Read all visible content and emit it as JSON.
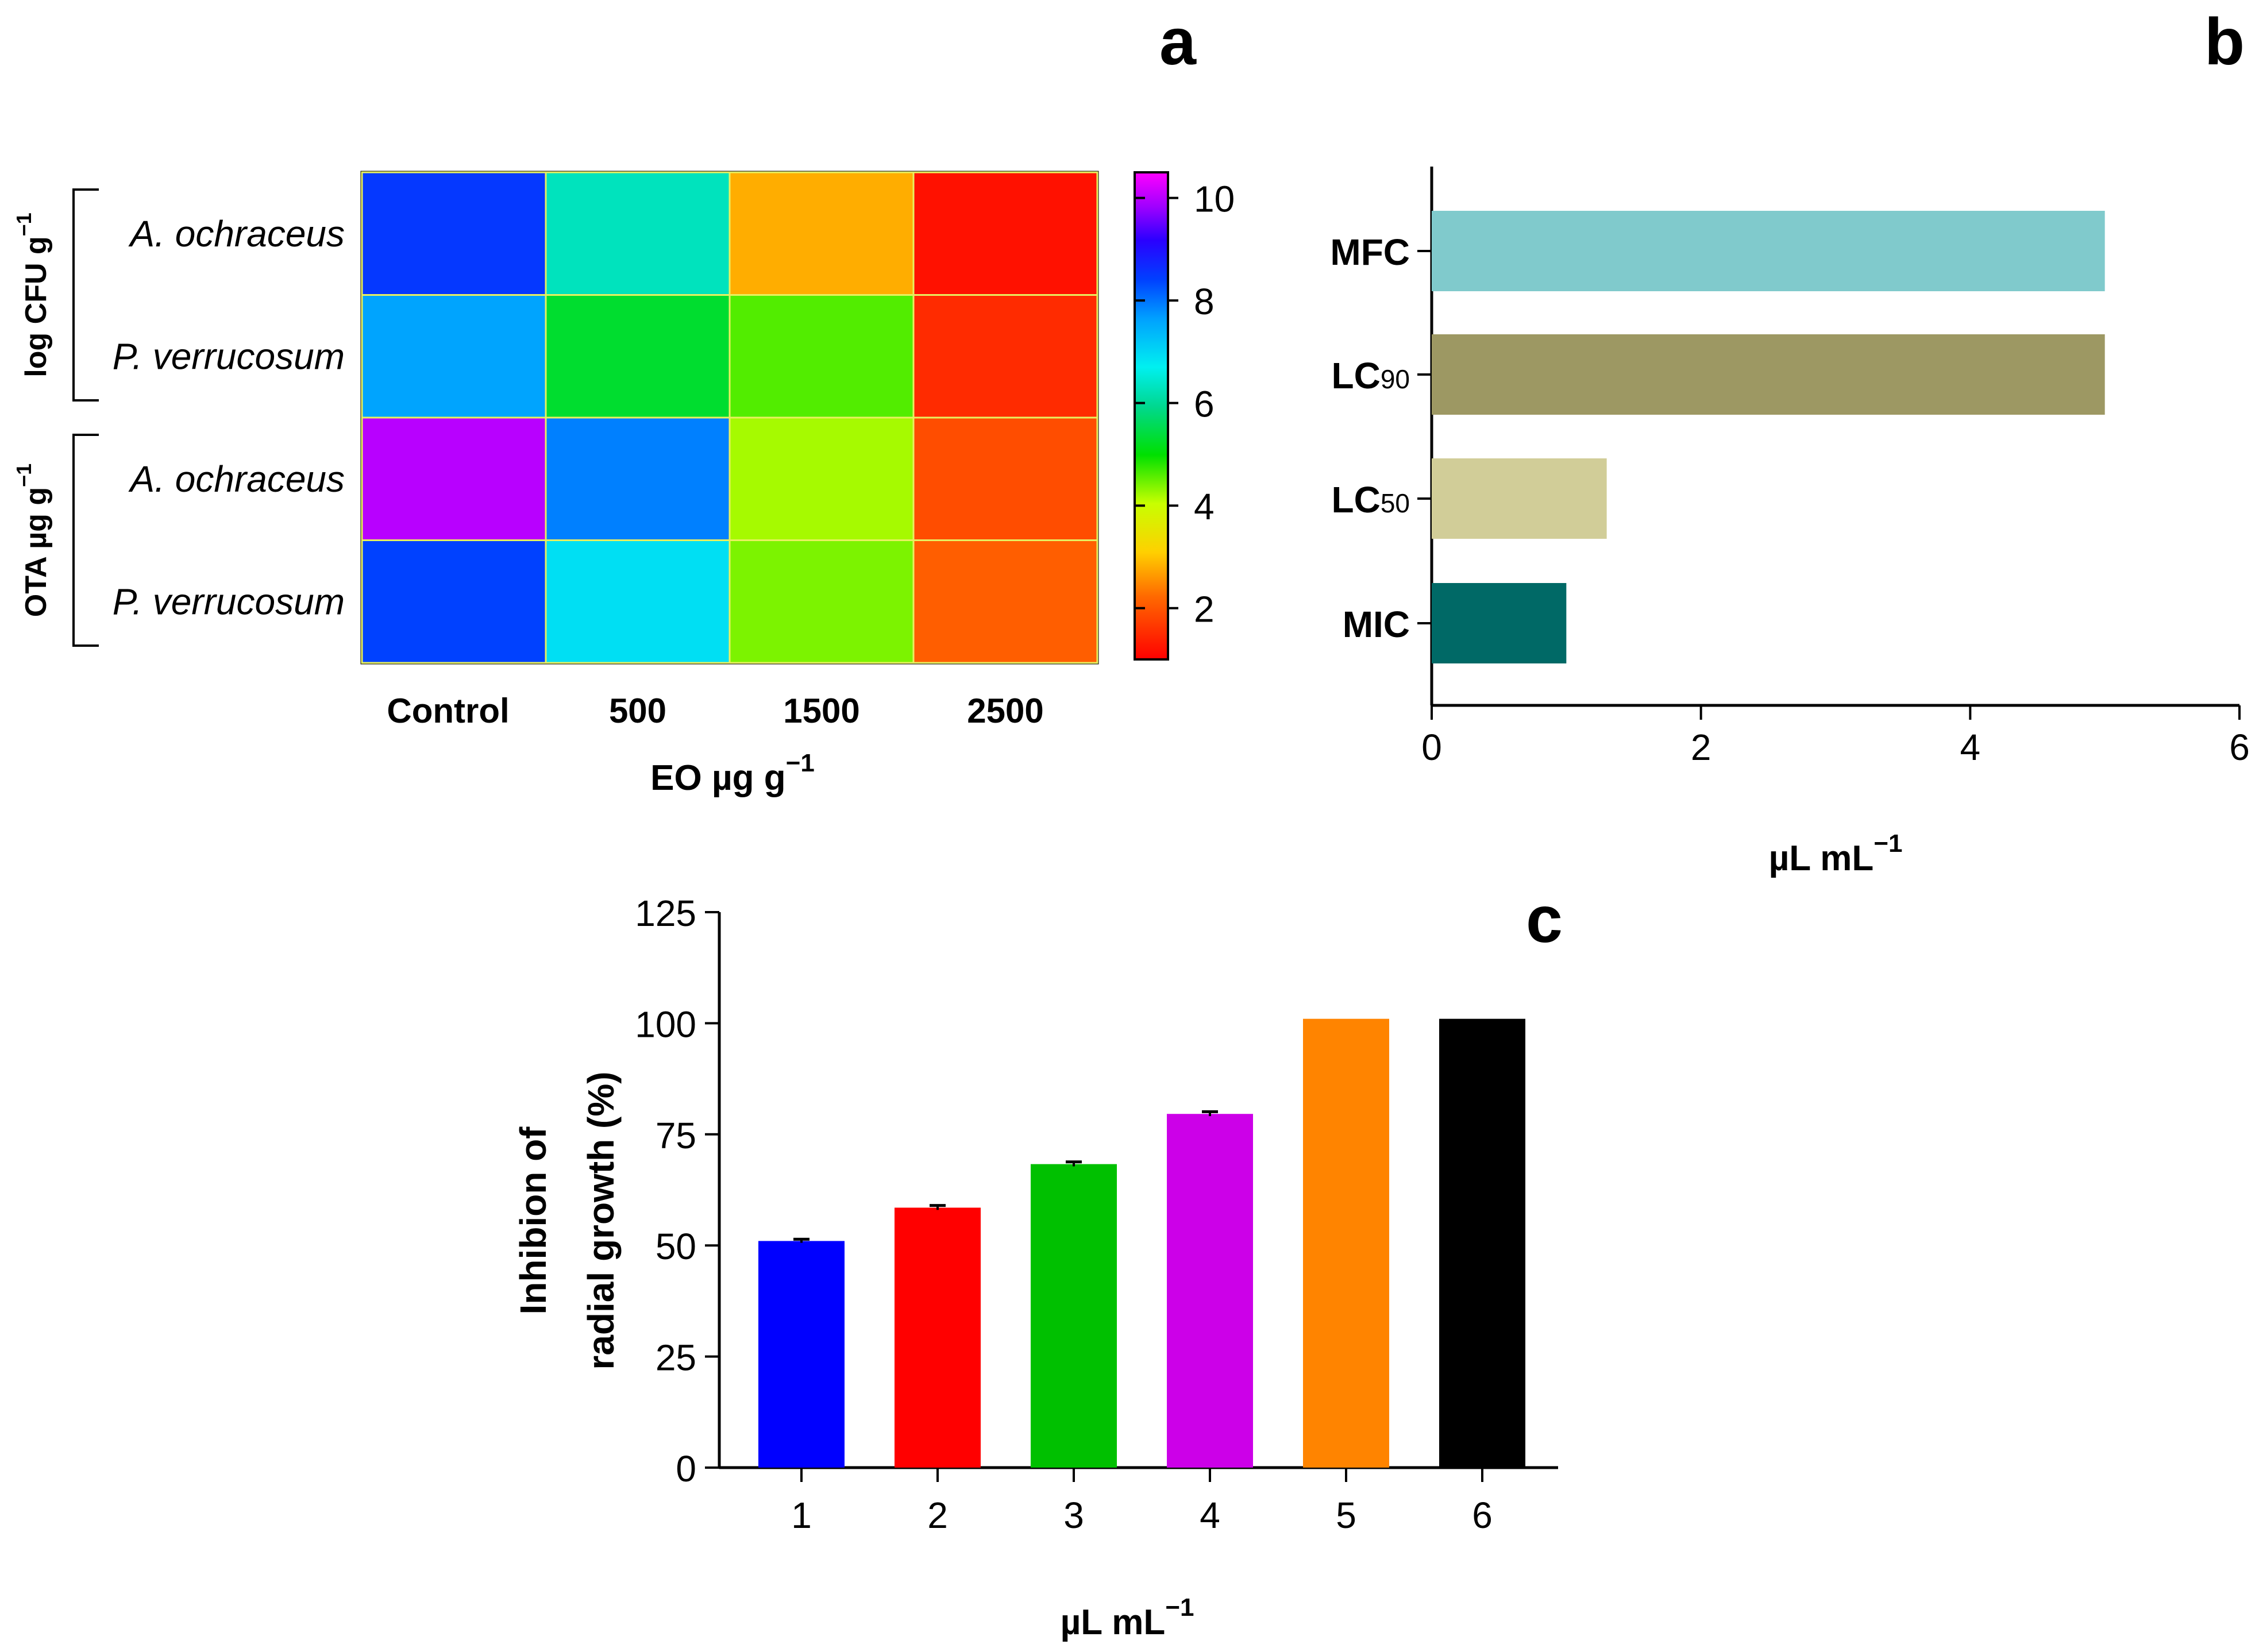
{
  "panel_labels": {
    "a": "a",
    "b": "b",
    "c": "c"
  },
  "chart_data": [
    {
      "id": "a",
      "type": "heatmap",
      "title": "",
      "xlabel": "EO µg g",
      "xlabel_sup": "−1",
      "columns": [
        "Control",
        "500",
        "1500",
        "2500"
      ],
      "rows": [
        "A. ochraceus",
        "P. verrucosum",
        "A. ochraceus",
        "P. verrucosum"
      ],
      "row_groups": [
        {
          "label": "log CFU g",
          "sup": "−1",
          "rows": [
            0,
            1
          ]
        },
        {
          "label": "OTA µg g",
          "sup": "−1",
          "rows": [
            2,
            3
          ]
        }
      ],
      "values": [
        [
          8.5,
          6.3,
          2.8,
          1.2
        ],
        [
          7.6,
          5.3,
          4.6,
          1.5
        ],
        [
          10.0,
          7.9,
          4.2,
          1.9
        ],
        [
          8.4,
          6.9,
          4.4,
          2.1
        ]
      ],
      "colorbar": {
        "min": 1,
        "max": 10.5,
        "ticks": [
          2,
          4,
          6,
          8,
          10
        ],
        "colormap": "jet (red low → magenta high)"
      }
    },
    {
      "id": "b",
      "type": "bar",
      "orientation": "horizontal",
      "title": "",
      "categories": [
        "MFC",
        "LC90",
        "LC50",
        "MIC"
      ],
      "category_parts": [
        {
          "main": "MFC",
          "sub": ""
        },
        {
          "main": "LC",
          "sub": "90"
        },
        {
          "main": "LC",
          "sub": "50"
        },
        {
          "main": "MIC",
          "sub": ""
        }
      ],
      "values": [
        5.0,
        5.0,
        1.3,
        1.0
      ],
      "colors": [
        "#80cacc",
        "#9d9863",
        "#d1cd98",
        "#006966"
      ],
      "xlabel": "µL mL",
      "xlabel_sup": "−1",
      "xlim": [
        0,
        6
      ],
      "xticks": [
        0,
        2,
        4,
        6
      ]
    },
    {
      "id": "c",
      "type": "bar",
      "title": "",
      "categories": [
        "1",
        "2",
        "3",
        "4",
        "5",
        "6"
      ],
      "values": [
        51,
        58.5,
        68.3,
        79.6,
        101,
        101
      ],
      "errors": [
        0.4,
        0.5,
        0.5,
        0.5,
        0,
        0
      ],
      "colors": [
        "#0000ff",
        "#ff0000",
        "#00c000",
        "#cc00e8",
        "#ff8400",
        "#000000"
      ],
      "xlabel": "µL mL",
      "xlabel_sup": "−1",
      "ylabel_lines": [
        "Inhibion of",
        "radial growth (%)"
      ],
      "ylim": [
        0,
        125
      ],
      "yticks": [
        0,
        25,
        50,
        75,
        100,
        125
      ]
    }
  ]
}
